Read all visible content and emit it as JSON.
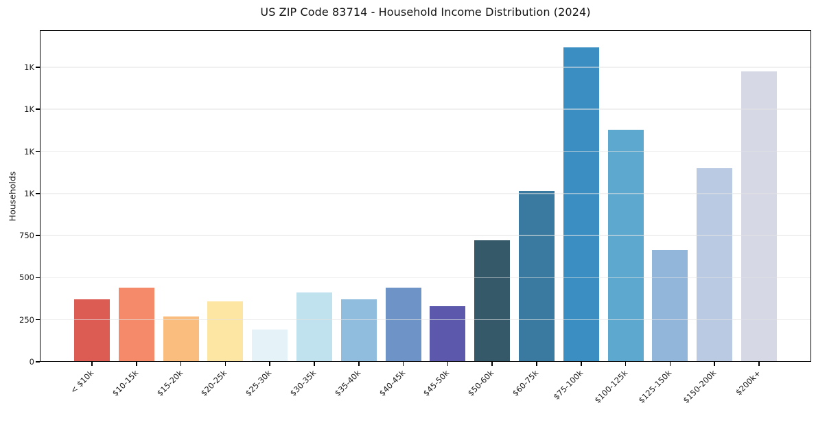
{
  "title": "US ZIP Code 83714 - Household Income Distribution (2024)",
  "chart_data": {
    "type": "bar",
    "title": "US ZIP Code 83714 - Household Income Distribution (2024)",
    "xlabel": "",
    "ylabel": "Households",
    "categories": [
      "< $10k",
      "$10-15k",
      "$15-20k",
      "$20-25k",
      "$25-30k",
      "$30-35k",
      "$35-40k",
      "$40-45k",
      "$45-50k",
      "$50-60k",
      "$60-75k",
      "$75-100k",
      "$100-125k",
      "$125-150k",
      "$150-200k",
      "$200k+"
    ],
    "values": [
      370,
      440,
      270,
      360,
      190,
      410,
      370,
      440,
      330,
      720,
      1015,
      1870,
      1380,
      665,
      1150,
      1725
    ],
    "bar_colors": [
      "#dc5b53",
      "#f48a69",
      "#fbbd7d",
      "#fde5a3",
      "#e5f3f8",
      "#c0e1ee",
      "#90bddd",
      "#6e93c6",
      "#5c59ac",
      "#36596a",
      "#3a7aa0",
      "#3a8ec2",
      "#5da8ce",
      "#92b6da",
      "#b9cae2",
      "#d6d8e6"
    ],
    "ylim": [
      0,
      1970
    ],
    "ytick_values": [
      0,
      250,
      500,
      750,
      1000,
      1250,
      1500,
      1750
    ],
    "ytick_labels": [
      "0",
      "250",
      "500",
      "750",
      "1K",
      "1K",
      "1K",
      "1K"
    ],
    "grid": "horizontal gridlines at y ticks, drawn faintly over bars",
    "legend": "none",
    "colors": {
      "gridline": "#e3e3e3",
      "spine": "#000000",
      "text": "#1a1a1a",
      "background": "#ffffff"
    }
  }
}
